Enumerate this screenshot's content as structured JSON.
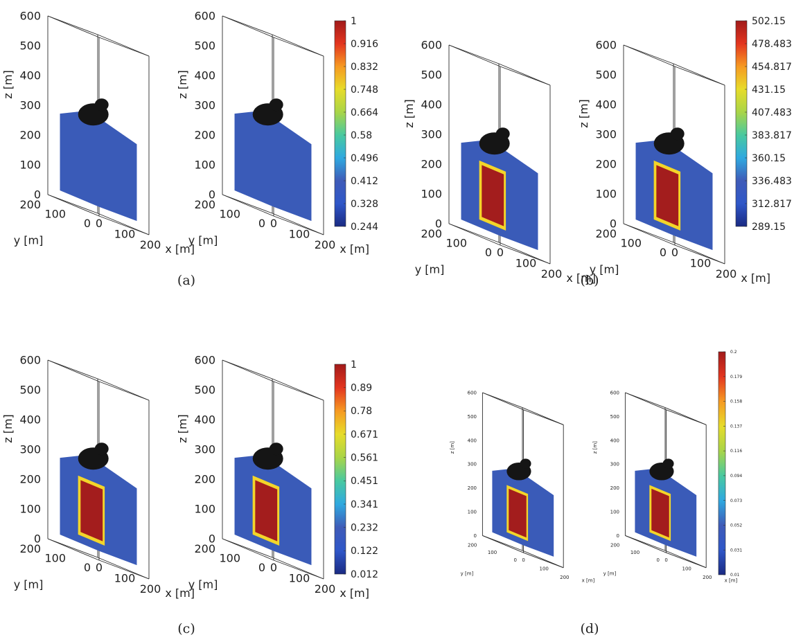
{
  "figure": {
    "colormap_stops": [
      "#1a2a82",
      "#2f57c8",
      "#3f5bb8",
      "#2fa9e0",
      "#49c9a0",
      "#a9d548",
      "#e7dc2a",
      "#f69a22",
      "#e3351f",
      "#a11a1a"
    ],
    "mesh_color": "#3a5bb8",
    "core_color": "#a31d1d",
    "dark_color": "#151515"
  },
  "panels": [
    {
      "caption": "(a)",
      "views": [
        {
          "axes": {
            "z_ticks": [
              "600",
              "500",
              "400",
              "300",
              "200",
              "100",
              "0"
            ],
            "z_label": "z [m]",
            "y_ticks": [
              "200",
              "100",
              "0"
            ],
            "y_label": "y [m]",
            "x_ticks": [
              "0",
              "100",
              "200"
            ],
            "x_label": "x [m]"
          }
        },
        {
          "axes": {
            "z_ticks": [
              "600",
              "500",
              "400",
              "300",
              "200",
              "100",
              "0"
            ],
            "z_label": "z [m]",
            "y_ticks": [
              "200",
              "100",
              "0"
            ],
            "y_label": "y [m]",
            "x_ticks": [
              "0",
              "100",
              "200"
            ],
            "x_label": "x [m]"
          }
        }
      ],
      "colorbar": {
        "tick_labels": [
          "1",
          "0.916",
          "0.832",
          "0.748",
          "0.664",
          "0.58",
          "0.496",
          "0.412",
          "0.328",
          "0.244"
        ]
      }
    },
    {
      "caption": "(b)",
      "views": [
        {
          "axes": {
            "z_ticks": [
              "600",
              "500",
              "400",
              "300",
              "200",
              "100",
              "0"
            ],
            "z_label": "z [m]",
            "y_ticks": [
              "200",
              "100",
              "0"
            ],
            "y_label": "y [m]",
            "x_ticks": [
              "0",
              "100",
              "200"
            ],
            "x_label": "x [m]"
          }
        },
        {
          "axes": {
            "z_ticks": [
              "600",
              "500",
              "400",
              "300",
              "200",
              "100",
              "0"
            ],
            "z_label": "z [m]",
            "y_ticks": [
              "200",
              "100",
              "0"
            ],
            "y_label": "y [m]",
            "x_ticks": [
              "0",
              "100",
              "200"
            ],
            "x_label": "x [m]"
          }
        }
      ],
      "colorbar": {
        "tick_labels": [
          "502.15",
          "478.483",
          "454.817",
          "431.15",
          "407.483",
          "383.817",
          "360.15",
          "336.483",
          "312.817",
          "289.15"
        ]
      }
    },
    {
      "caption": "(c)",
      "views": [
        {
          "axes": {
            "z_ticks": [
              "600",
              "500",
              "400",
              "300",
              "200",
              "100",
              "0"
            ],
            "z_label": "z [m]",
            "y_ticks": [
              "200",
              "100",
              "0"
            ],
            "y_label": "y [m]",
            "x_ticks": [
              "0",
              "100",
              "200"
            ],
            "x_label": "x [m]"
          }
        },
        {
          "axes": {
            "z_ticks": [
              "600",
              "500",
              "400",
              "300",
              "200",
              "100",
              "0"
            ],
            "z_label": "z [m]",
            "y_ticks": [
              "200",
              "100",
              "0"
            ],
            "y_label": "y [m]",
            "x_ticks": [
              "0",
              "100",
              "200"
            ],
            "x_label": "x [m]"
          }
        }
      ],
      "colorbar": {
        "tick_labels": [
          "1",
          "0.89",
          "0.78",
          "0.671",
          "0.561",
          "0.451",
          "0.341",
          "0.232",
          "0.122",
          "0.012"
        ]
      }
    },
    {
      "caption": "(d)",
      "views": [
        {
          "axes": {
            "z_ticks": [
              "600",
              "500",
              "400",
              "300",
              "200",
              "100",
              "0"
            ],
            "z_label": "z [m]",
            "y_ticks": [
              "200",
              "100",
              "0"
            ],
            "y_label": "y [m]",
            "x_ticks": [
              "0",
              "100",
              "200"
            ],
            "x_label": "x [m]"
          }
        },
        {
          "axes": {
            "z_ticks": [
              "600",
              "500",
              "400",
              "300",
              "200",
              "100",
              "0"
            ],
            "z_label": "z [m]",
            "y_ticks": [
              "200",
              "100",
              "0"
            ],
            "y_label": "y [m]",
            "x_ticks": [
              "0",
              "100",
              "200"
            ],
            "x_label": "x [m]"
          }
        }
      ],
      "colorbar": {
        "tick_labels": [
          "0.2",
          "0.179",
          "0.158",
          "0.137",
          "0.116",
          "0.094",
          "0.073",
          "0.052",
          "0.031",
          "0.01"
        ]
      }
    }
  ],
  "chart_data": [
    {
      "type": "heatmap",
      "panel": "(a)",
      "axes": {
        "x_range": [
          0,
          200
        ],
        "y_range": [
          0,
          200
        ],
        "z_range": [
          0,
          600
        ]
      },
      "colorbar_range": [
        0.244,
        1
      ]
    },
    {
      "type": "heatmap",
      "panel": "(b)",
      "axes": {
        "x_range": [
          0,
          200
        ],
        "y_range": [
          0,
          200
        ],
        "z_range": [
          0,
          600
        ]
      },
      "colorbar_range": [
        289.15,
        502.15
      ]
    },
    {
      "type": "heatmap",
      "panel": "(c)",
      "axes": {
        "x_range": [
          0,
          200
        ],
        "y_range": [
          0,
          200
        ],
        "z_range": [
          0,
          600
        ]
      },
      "colorbar_range": [
        0.012,
        1
      ]
    },
    {
      "type": "heatmap",
      "panel": "(d)",
      "axes": {
        "x_range": [
          0,
          200
        ],
        "y_range": [
          0,
          200
        ],
        "z_range": [
          0,
          600
        ]
      },
      "colorbar_range": [
        0.01,
        0.2
      ]
    }
  ]
}
